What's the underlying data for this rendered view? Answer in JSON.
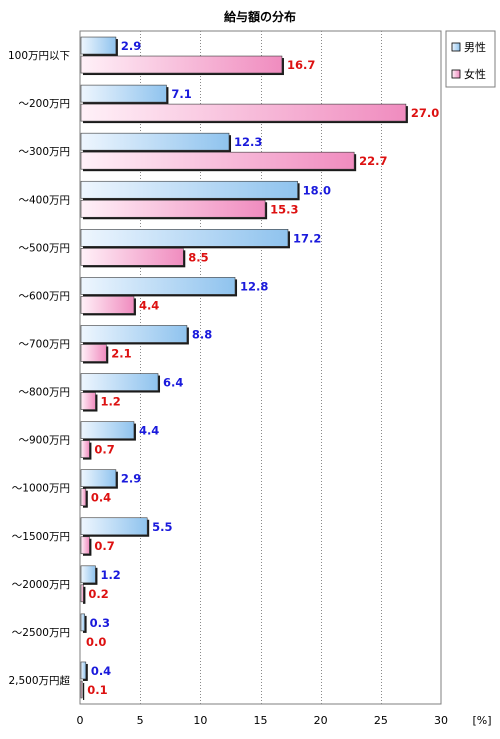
{
  "chart_data": {
    "type": "bar",
    "orientation": "horizontal",
    "title": "給与額の分布",
    "x_unit_label": "[%]",
    "xlim": [
      0,
      30
    ],
    "x_ticks": [
      0,
      5,
      10,
      15,
      20,
      25,
      30
    ],
    "grid": "vertical dotted",
    "legend_position": "top-right",
    "categories": [
      "100万円以下",
      "～200万円",
      "～300万円",
      "～400万円",
      "～500万円",
      "～600万円",
      "～700万円",
      "～800万円",
      "～900万円",
      "～1000万円",
      "～1500万円",
      "～2000万円",
      "～2500万円",
      "2,500万円超"
    ],
    "series": [
      {
        "name": "男性",
        "color": "#8fc3ee",
        "label_color": "#1a1adc",
        "values": [
          2.9,
          7.1,
          12.3,
          18.0,
          17.2,
          12.8,
          8.8,
          6.4,
          4.4,
          2.9,
          5.5,
          1.2,
          0.3,
          0.4
        ],
        "labels": [
          "2.9",
          "7.1",
          "12.3",
          "18.0",
          "17.2",
          "12.8",
          "8.8",
          "6.4",
          "4.4",
          "2.9",
          "5.5",
          "1.2",
          "0.3",
          "0.4"
        ]
      },
      {
        "name": "女性",
        "color": "#f08cbf",
        "label_color": "#dd1111",
        "values": [
          16.7,
          27.0,
          22.7,
          15.3,
          8.5,
          4.4,
          2.1,
          1.2,
          0.7,
          0.4,
          0.7,
          0.2,
          0.0,
          0.1
        ],
        "labels": [
          "16.7",
          "27.0",
          "22.7",
          "15.3",
          "8.5",
          "4.4",
          "2.1",
          "1.2",
          "0.7",
          "0.4",
          "0.7",
          "0.2",
          "0.0",
          "0.1"
        ]
      }
    ]
  }
}
